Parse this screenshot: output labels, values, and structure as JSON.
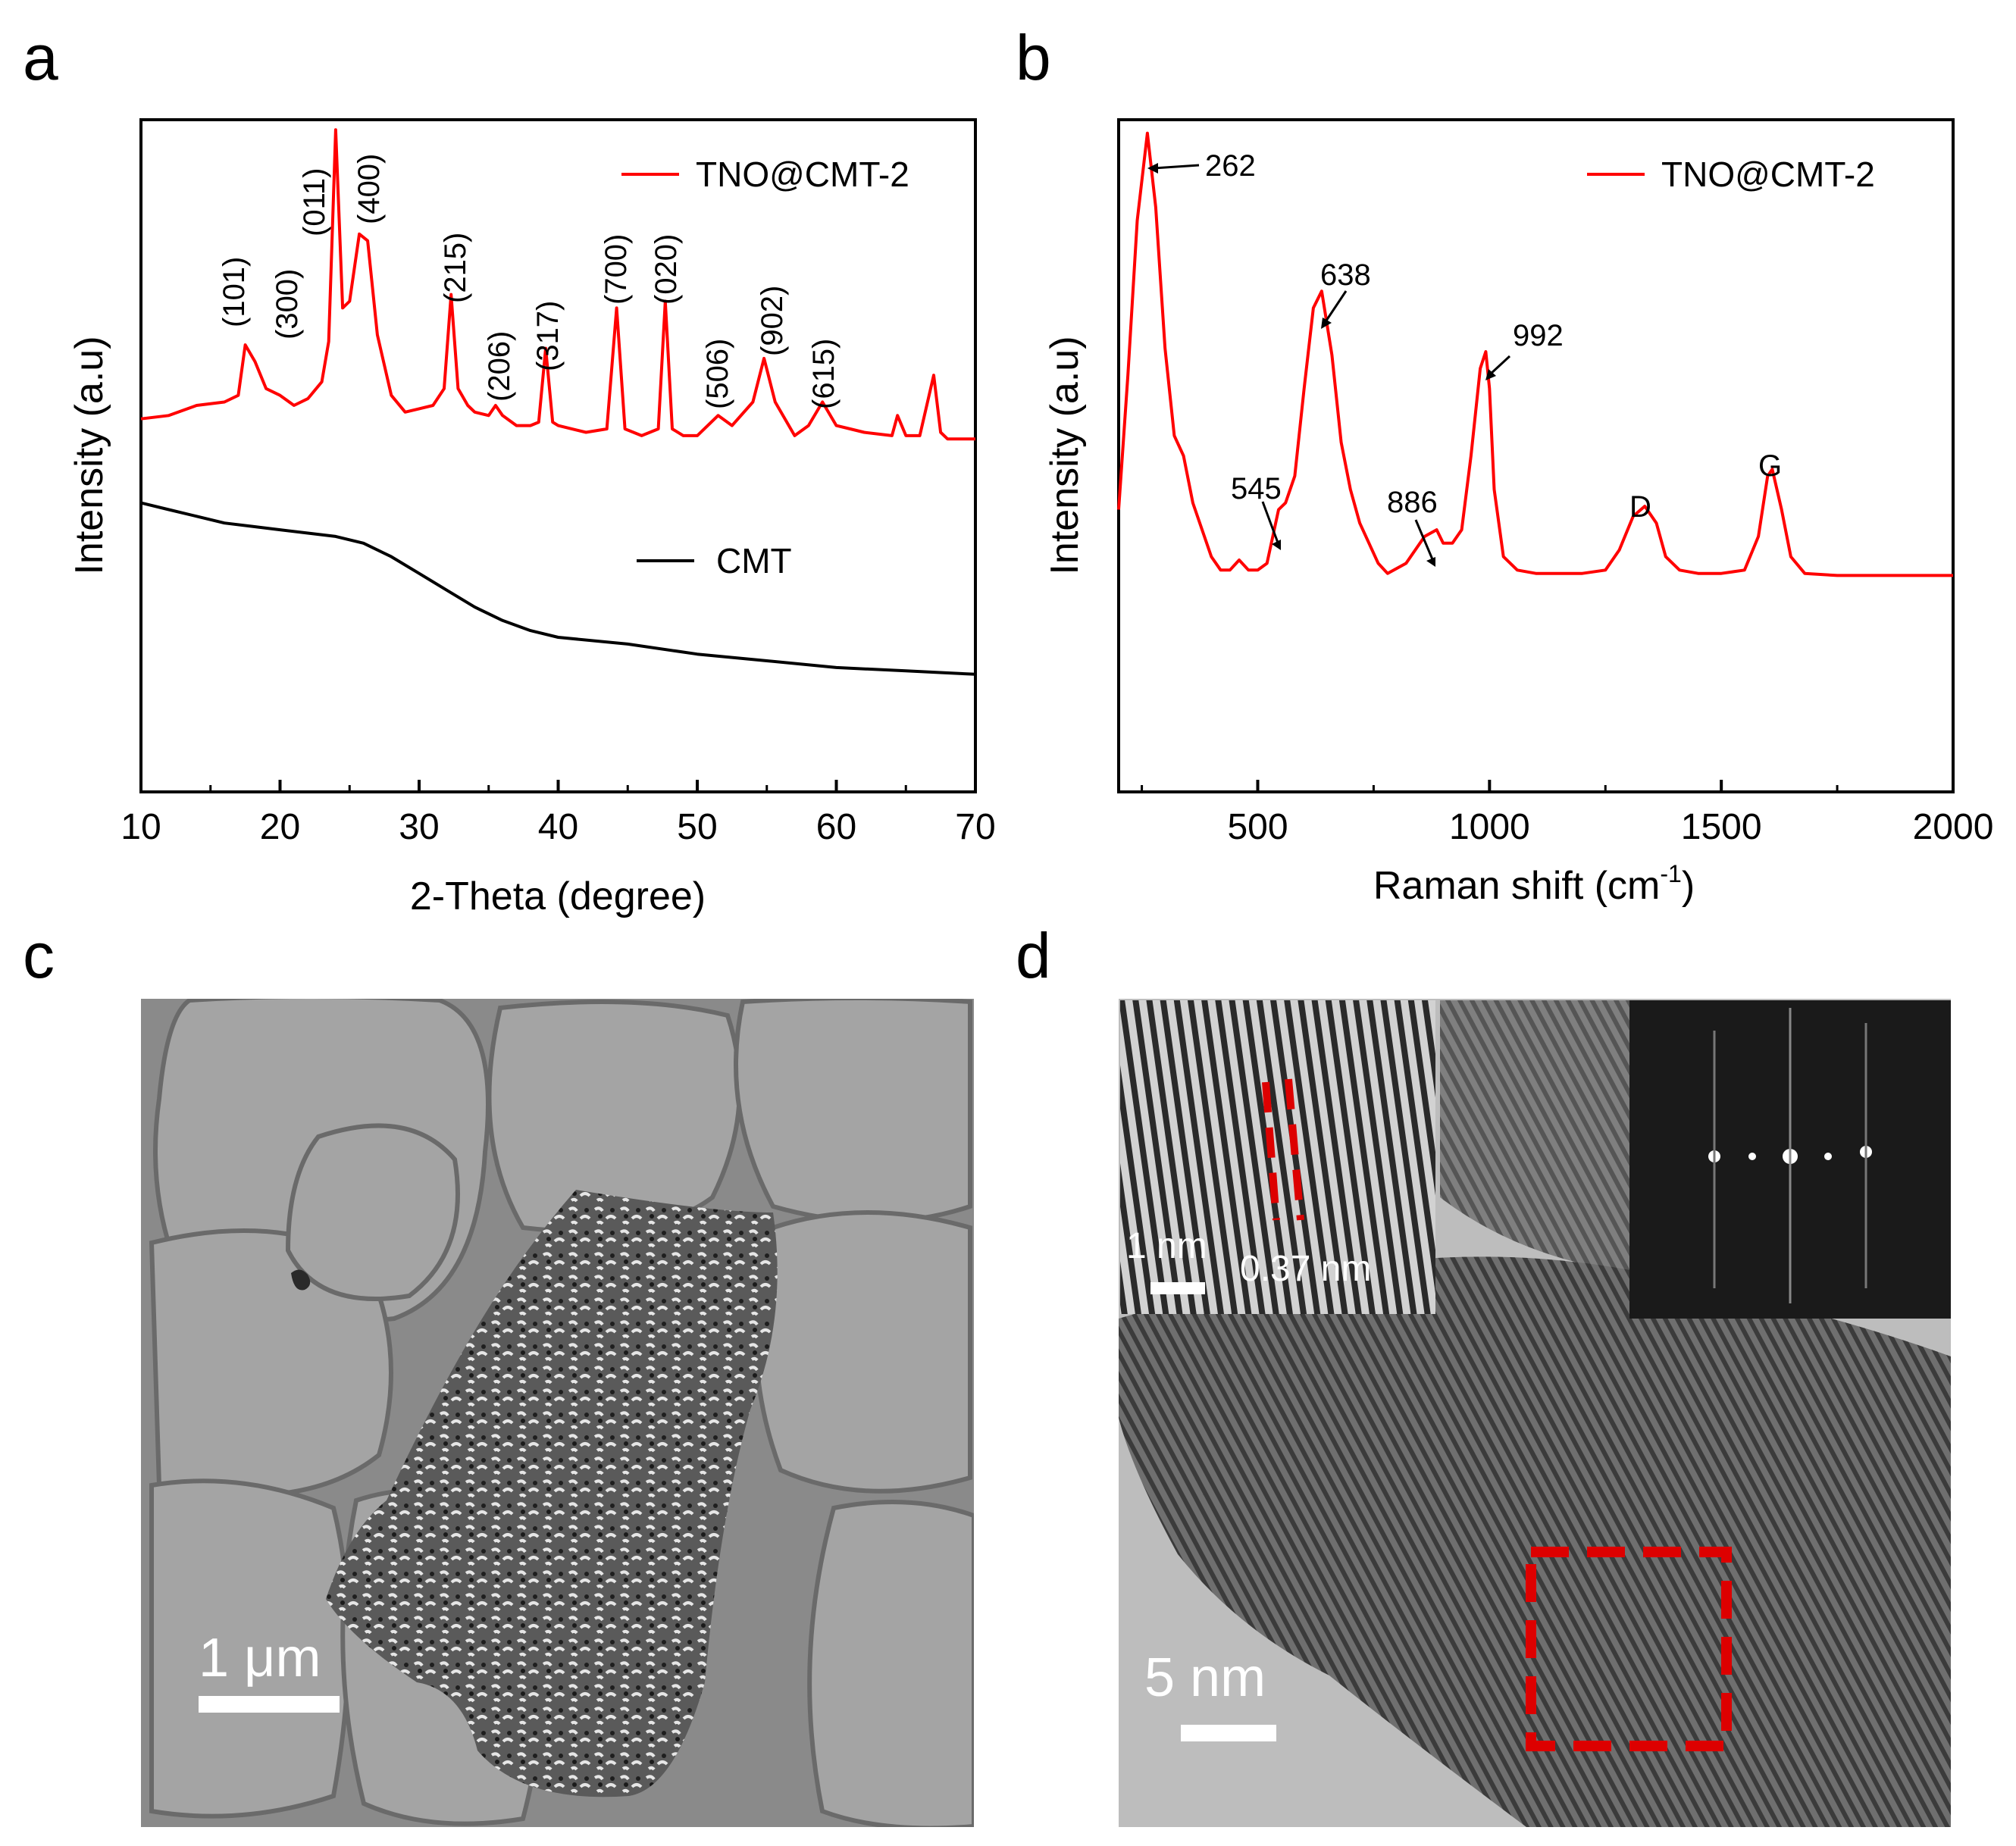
{
  "panels": {
    "a": "a",
    "b": "b",
    "c": "c",
    "d": "d"
  },
  "chart_data": [
    {
      "type": "line",
      "panel": "a",
      "xlabel": "2-Theta (degree)",
      "ylabel": "Intensity (a.u)",
      "xlim": [
        10,
        70
      ],
      "xticks": [
        10,
        20,
        30,
        40,
        50,
        60,
        70
      ],
      "legend_placement": "top-right",
      "series": [
        {
          "name": "TNO@CMT-2",
          "color": "#ff0000",
          "points": [
            [
              10,
              0.555
            ],
            [
              12,
              0.56
            ],
            [
              14,
              0.575
            ],
            [
              16,
              0.58
            ],
            [
              17,
              0.59
            ],
            [
              17.5,
              0.665
            ],
            [
              18.2,
              0.64
            ],
            [
              19,
              0.6
            ],
            [
              20,
              0.59
            ],
            [
              21,
              0.575
            ],
            [
              22,
              0.585
            ],
            [
              23,
              0.61
            ],
            [
              23.5,
              0.67
            ],
            [
              24,
              0.985
            ],
            [
              24.5,
              0.72
            ],
            [
              25,
              0.73
            ],
            [
              25.7,
              0.83
            ],
            [
              26.3,
              0.82
            ],
            [
              27,
              0.68
            ],
            [
              28,
              0.59
            ],
            [
              29,
              0.565
            ],
            [
              30,
              0.57
            ],
            [
              31,
              0.575
            ],
            [
              31.8,
              0.6
            ],
            [
              32.3,
              0.74
            ],
            [
              32.8,
              0.6
            ],
            [
              33.5,
              0.575
            ],
            [
              34,
              0.565
            ],
            [
              35,
              0.56
            ],
            [
              35.5,
              0.575
            ],
            [
              36,
              0.56
            ],
            [
              37,
              0.545
            ],
            [
              38,
              0.545
            ],
            [
              38.6,
              0.55
            ],
            [
              39.1,
              0.66
            ],
            [
              39.6,
              0.55
            ],
            [
              40,
              0.545
            ],
            [
              42,
              0.535
            ],
            [
              43.5,
              0.54
            ],
            [
              44.2,
              0.72
            ],
            [
              44.8,
              0.54
            ],
            [
              46,
              0.53
            ],
            [
              47.2,
              0.54
            ],
            [
              47.7,
              0.73
            ],
            [
              48.2,
              0.54
            ],
            [
              49,
              0.53
            ],
            [
              50,
              0.53
            ],
            [
              51.5,
              0.56
            ],
            [
              52.5,
              0.545
            ],
            [
              54,
              0.58
            ],
            [
              54.8,
              0.645
            ],
            [
              55.6,
              0.58
            ],
            [
              57,
              0.53
            ],
            [
              58,
              0.545
            ],
            [
              59,
              0.58
            ],
            [
              60,
              0.545
            ],
            [
              61,
              0.54
            ],
            [
              62,
              0.535
            ],
            [
              64,
              0.53
            ],
            [
              64.4,
              0.56
            ],
            [
              65,
              0.53
            ],
            [
              66,
              0.53
            ],
            [
              67,
              0.62
            ],
            [
              67.5,
              0.535
            ],
            [
              68,
              0.525
            ],
            [
              70,
              0.525
            ]
          ]
        },
        {
          "name": "CMT",
          "color": "#000000",
          "points": [
            [
              10,
              0.43
            ],
            [
              12,
              0.42
            ],
            [
              14,
              0.41
            ],
            [
              16,
              0.4
            ],
            [
              18,
              0.395
            ],
            [
              20,
              0.39
            ],
            [
              22,
              0.385
            ],
            [
              24,
              0.38
            ],
            [
              26,
              0.37
            ],
            [
              28,
              0.35
            ],
            [
              30,
              0.325
            ],
            [
              32,
              0.3
            ],
            [
              34,
              0.275
            ],
            [
              36,
              0.255
            ],
            [
              38,
              0.24
            ],
            [
              40,
              0.23
            ],
            [
              45,
              0.22
            ],
            [
              50,
              0.205
            ],
            [
              55,
              0.195
            ],
            [
              60,
              0.185
            ],
            [
              65,
              0.18
            ],
            [
              70,
              0.175
            ]
          ]
        }
      ],
      "annotations": [
        "(101)",
        "(300)",
        "(011)",
        "(400)",
        "(215)",
        "(206)",
        "(317)",
        "(700)",
        "(020)",
        "(506)",
        "(902)",
        "(615)"
      ]
    },
    {
      "type": "line",
      "panel": "b",
      "xlabel": "Raman shift (cm",
      "xlabel_sup": "-1",
      "xlabel_end": ")",
      "ylabel": "Intensity (a.u)",
      "xlim": [
        200,
        2000
      ],
      "xticks": [
        500,
        1000,
        1500,
        2000
      ],
      "legend_placement": "top-right",
      "series": [
        {
          "name": "TNO@CMT-2",
          "color": "#ff0000",
          "points": [
            [
              200,
              0.42
            ],
            [
              220,
              0.62
            ],
            [
              240,
              0.85
            ],
            [
              262,
              0.98
            ],
            [
              280,
              0.87
            ],
            [
              300,
              0.66
            ],
            [
              320,
              0.53
            ],
            [
              340,
              0.5
            ],
            [
              360,
              0.43
            ],
            [
              400,
              0.35
            ],
            [
              420,
              0.33
            ],
            [
              440,
              0.33
            ],
            [
              460,
              0.345
            ],
            [
              480,
              0.33
            ],
            [
              500,
              0.33
            ],
            [
              520,
              0.34
            ],
            [
              545,
              0.42
            ],
            [
              560,
              0.43
            ],
            [
              580,
              0.47
            ],
            [
              600,
              0.6
            ],
            [
              620,
              0.72
            ],
            [
              638,
              0.745
            ],
            [
              660,
              0.65
            ],
            [
              680,
              0.52
            ],
            [
              700,
              0.45
            ],
            [
              720,
              0.4
            ],
            [
              760,
              0.34
            ],
            [
              780,
              0.325
            ],
            [
              820,
              0.34
            ],
            [
              860,
              0.38
            ],
            [
              886,
              0.39
            ],
            [
              900,
              0.37
            ],
            [
              920,
              0.37
            ],
            [
              940,
              0.39
            ],
            [
              960,
              0.5
            ],
            [
              980,
              0.63
            ],
            [
              992,
              0.655
            ],
            [
              1000,
              0.6
            ],
            [
              1010,
              0.45
            ],
            [
              1030,
              0.35
            ],
            [
              1060,
              0.33
            ],
            [
              1100,
              0.325
            ],
            [
              1150,
              0.325
            ],
            [
              1200,
              0.325
            ],
            [
              1250,
              0.33
            ],
            [
              1280,
              0.36
            ],
            [
              1310,
              0.41
            ],
            [
              1335,
              0.425
            ],
            [
              1360,
              0.4
            ],
            [
              1380,
              0.35
            ],
            [
              1410,
              0.33
            ],
            [
              1450,
              0.325
            ],
            [
              1500,
              0.325
            ],
            [
              1550,
              0.33
            ],
            [
              1580,
              0.38
            ],
            [
              1600,
              0.47
            ],
            [
              1610,
              0.48
            ],
            [
              1630,
              0.42
            ],
            [
              1650,
              0.35
            ],
            [
              1680,
              0.325
            ],
            [
              1750,
              0.322
            ],
            [
              1850,
              0.322
            ],
            [
              2000,
              0.322
            ]
          ]
        }
      ],
      "annotations": [
        "262",
        "638",
        "992",
        "545",
        "886",
        "D",
        "G"
      ]
    }
  ],
  "micrographs": {
    "c_scale": "1 μm",
    "d_scale": "5 nm",
    "d_inset_scale": "1 nm",
    "d_inset_spacing": "0.37 nm"
  }
}
